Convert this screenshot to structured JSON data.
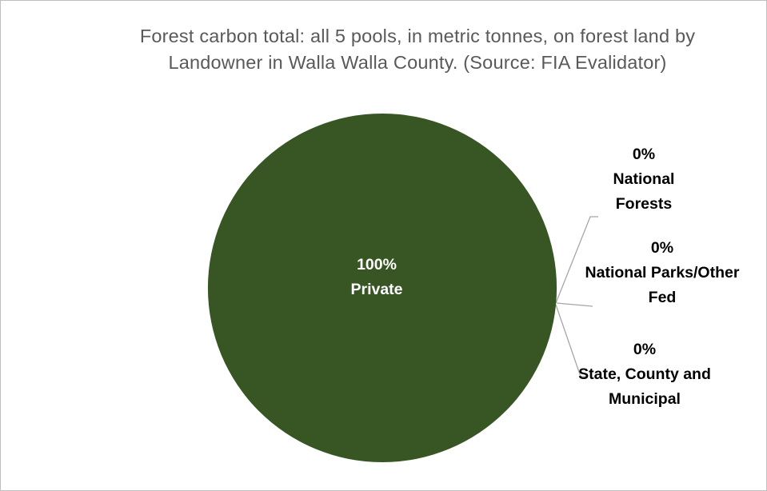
{
  "chart_data": {
    "type": "pie",
    "title": "Forest carbon total: all 5 pools, in metric tonnes, on forest land by Landowner in Walla Walla County. (Source: FIA Evalidator)",
    "categories": [
      "Private",
      "National Forests",
      "National Parks/Other Fed",
      "State, County and Municipal"
    ],
    "values": [
      100,
      0,
      0,
      0
    ],
    "value_labels": [
      "100%",
      "0%",
      "0%",
      "0%"
    ],
    "colors": [
      "#375623",
      "#548235",
      "#a9d18e",
      "#c5e0b4"
    ]
  }
}
